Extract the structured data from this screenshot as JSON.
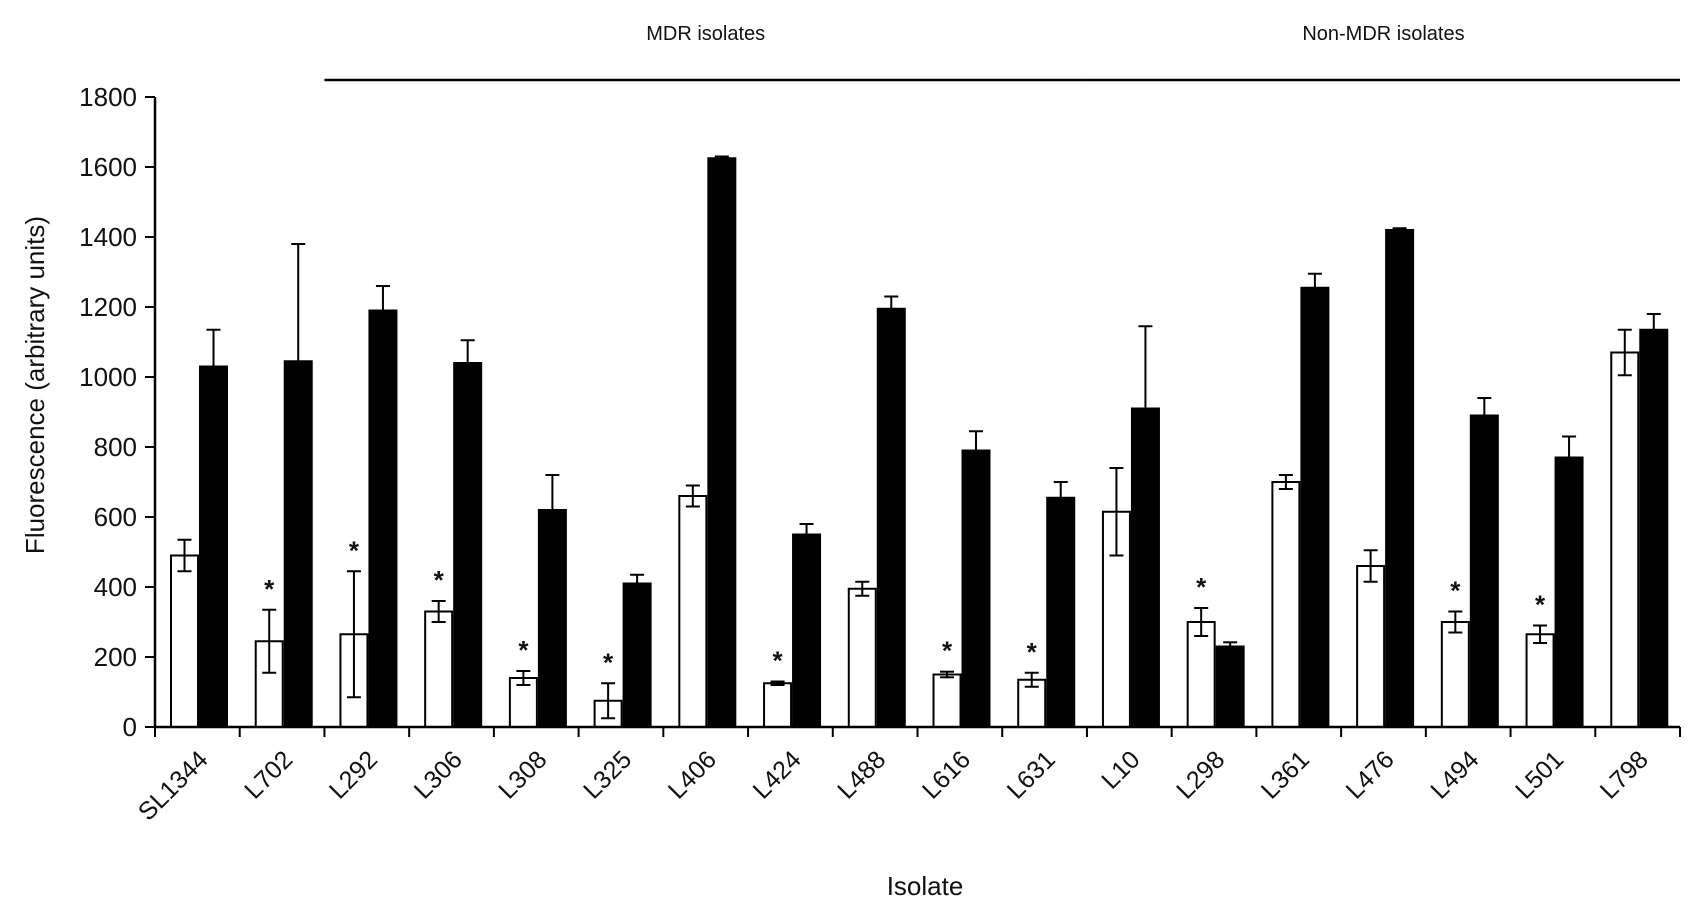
{
  "chart_data": {
    "type": "bar",
    "xlabel": "Isolate",
    "ylabel": "Fluorescence (arbitrary units)",
    "ylim": [
      0,
      1800
    ],
    "yticks": [
      "0",
      "200",
      "400",
      "600",
      "800",
      "1000",
      "1200",
      "1400",
      "1600",
      "1800"
    ],
    "grid": false,
    "legend": "none",
    "categories": [
      "SL1344",
      "L702",
      "L292",
      "L306",
      "L308",
      "L325",
      "L406",
      "L424",
      "L488",
      "L616",
      "L631",
      "L10",
      "L298",
      "L361",
      "L476",
      "L494",
      "L501",
      "L798"
    ],
    "series": [
      {
        "style": "white",
        "values": [
          490,
          245,
          265,
          330,
          140,
          75,
          660,
          125,
          395,
          150,
          135,
          615,
          300,
          700,
          460,
          300,
          265,
          1070
        ],
        "errors": [
          45,
          90,
          180,
          30,
          20,
          50,
          30,
          5,
          20,
          8,
          20,
          125,
          40,
          20,
          45,
          30,
          25,
          65
        ]
      },
      {
        "style": "black",
        "values": [
          1030,
          1045,
          1190,
          1040,
          620,
          410,
          1625,
          550,
          1195,
          790,
          655,
          910,
          230,
          1255,
          1420,
          890,
          770,
          1135
        ],
        "errors": [
          105,
          335,
          70,
          65,
          100,
          25,
          5,
          30,
          35,
          55,
          45,
          235,
          12,
          40,
          5,
          50,
          60,
          45
        ]
      }
    ],
    "significance_marks": {
      "symbol": "*",
      "categories": [
        "L702",
        "L292",
        "L306",
        "L308",
        "L325",
        "L424",
        "L616",
        "L631",
        "L298",
        "L494",
        "L501"
      ]
    },
    "groups": [
      {
        "label": "MDR isolates",
        "from": "L292",
        "to": "L631"
      },
      {
        "label": "Non-MDR isolates",
        "from": "L10",
        "to": "L798"
      }
    ]
  }
}
